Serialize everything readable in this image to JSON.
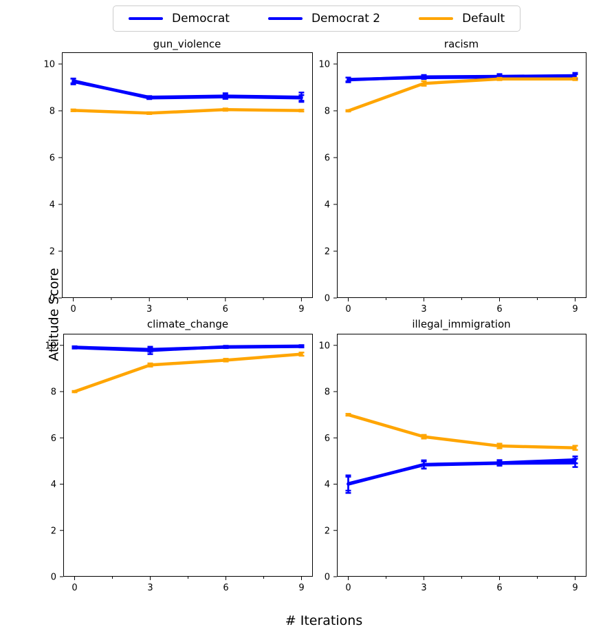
{
  "ylabel": "Attitude Score",
  "xlabel": "# Iterations",
  "legend": {
    "series": [
      {
        "label": "Democrat",
        "color": "#0000ff"
      },
      {
        "label": "Democrat 2",
        "color": "#0000ff"
      },
      {
        "label": "Default",
        "color": "#ffa500"
      }
    ]
  },
  "colors": {
    "democrat": "#0000ff",
    "default": "#ffa500",
    "axis": "#000000",
    "legend_border": "#cccccc"
  },
  "chart_data": [
    {
      "type": "line",
      "title": "gun_violence",
      "x": [
        0,
        3,
        6,
        9
      ],
      "xlim": [
        -0.45,
        9.45
      ],
      "ylim": [
        0,
        10.5
      ],
      "xticks": [
        0,
        3,
        6,
        9
      ],
      "xminor": [
        1.5,
        4.5,
        7.5
      ],
      "yticks": [
        0,
        2,
        4,
        6,
        8,
        10
      ],
      "series": [
        {
          "name": "Democrat",
          "color": "#0000ff",
          "values": [
            9.25,
            8.58,
            8.63,
            8.58
          ],
          "yerr": [
            0.12,
            0.05,
            0.12,
            0.2
          ]
        },
        {
          "name": "Democrat 2",
          "color": "#0000ff",
          "values": [
            9.28,
            8.55,
            8.6,
            8.55
          ],
          "yerr": [
            0.1,
            0.05,
            0.08,
            0.12
          ]
        },
        {
          "name": "Default",
          "color": "#ffa500",
          "values": [
            8.02,
            7.9,
            8.05,
            8.01
          ],
          "yerr": [
            0.04,
            0.04,
            0.05,
            0.04
          ]
        }
      ]
    },
    {
      "type": "line",
      "title": "racism",
      "x": [
        0,
        3,
        6,
        9
      ],
      "xlim": [
        -0.45,
        9.45
      ],
      "ylim": [
        0,
        10.5
      ],
      "xticks": [
        0,
        3,
        6,
        9
      ],
      "xminor": [
        1.5,
        4.5,
        7.5
      ],
      "yticks": [
        0,
        2,
        4,
        6,
        8,
        10
      ],
      "series": [
        {
          "name": "Democrat",
          "color": "#0000ff",
          "values": [
            9.32,
            9.45,
            9.47,
            9.5
          ],
          "yerr": [
            0.1,
            0.08,
            0.1,
            0.12
          ]
        },
        {
          "name": "Democrat 2",
          "color": "#0000ff",
          "values": [
            9.34,
            9.42,
            9.44,
            9.46
          ],
          "yerr": [
            0.08,
            0.06,
            0.08,
            0.1
          ]
        },
        {
          "name": "Default",
          "color": "#ffa500",
          "values": [
            8.0,
            9.17,
            9.36,
            9.36
          ],
          "yerr": [
            0.03,
            0.1,
            0.05,
            0.05
          ]
        }
      ]
    },
    {
      "type": "line",
      "title": "climate_change",
      "x": [
        0,
        3,
        6,
        9
      ],
      "xlim": [
        -0.45,
        9.45
      ],
      "ylim": [
        0,
        10.5
      ],
      "xticks": [
        0,
        3,
        6,
        9
      ],
      "xminor": [
        1.5,
        4.5,
        7.5
      ],
      "yticks": [
        0,
        2,
        4,
        6,
        8,
        10
      ],
      "series": [
        {
          "name": "Democrat",
          "color": "#0000ff",
          "values": [
            9.9,
            9.78,
            9.94,
            9.97
          ],
          "yerr": [
            0.04,
            0.16,
            0.04,
            0.04
          ]
        },
        {
          "name": "Democrat 2",
          "color": "#0000ff",
          "values": [
            9.92,
            9.82,
            9.92,
            9.95
          ],
          "yerr": [
            0.04,
            0.1,
            0.04,
            0.04
          ]
        },
        {
          "name": "Default",
          "color": "#ffa500",
          "values": [
            8.0,
            9.15,
            9.36,
            9.62
          ],
          "yerr": [
            0.03,
            0.07,
            0.06,
            0.07
          ]
        }
      ]
    },
    {
      "type": "line",
      "title": "illegal_immigration",
      "x": [
        0,
        3,
        6,
        9
      ],
      "xlim": [
        -0.45,
        9.45
      ],
      "ylim": [
        0,
        10.5
      ],
      "xticks": [
        0,
        3,
        6,
        9
      ],
      "xminor": [
        1.5,
        4.5,
        7.5
      ],
      "yticks": [
        0,
        2,
        4,
        6,
        8,
        10
      ],
      "series": [
        {
          "name": "Democrat",
          "color": "#0000ff",
          "values": [
            4.0,
            4.85,
            4.92,
            5.05
          ],
          "yerr": [
            0.38,
            0.18,
            0.12,
            0.15
          ]
        },
        {
          "name": "Democrat 2",
          "color": "#0000ff",
          "values": [
            4.02,
            4.83,
            4.9,
            4.92
          ],
          "yerr": [
            0.3,
            0.15,
            0.1,
            0.18
          ]
        },
        {
          "name": "Default",
          "color": "#ffa500",
          "values": [
            7.0,
            6.05,
            5.65,
            5.57
          ],
          "yerr": [
            0.04,
            0.08,
            0.1,
            0.09
          ]
        }
      ]
    }
  ]
}
